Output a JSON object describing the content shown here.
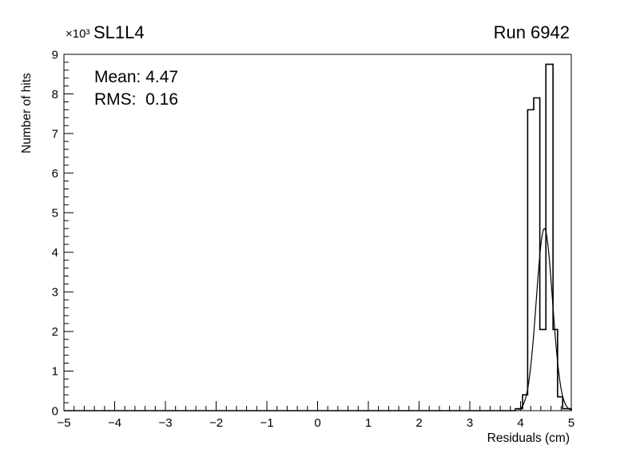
{
  "header": {
    "left_title": "SL1L4",
    "right_title": "Run 6942"
  },
  "stats": {
    "mean_text": "Mean: 4.47",
    "rms_text": "RMS:  0.16"
  },
  "axes": {
    "x_title": "Residuals (cm)",
    "y_title": "Number of hits",
    "y_multiplier": "×10³"
  },
  "chart_data": {
    "type": "bar",
    "subtype": "histogram_with_gaussian_fit",
    "title": "SL1L4",
    "annotation": "Run 6942",
    "xlabel": "Residuals (cm)",
    "ylabel": "Number of hits",
    "x_range": [
      -5,
      5
    ],
    "y_range": [
      0,
      9000
    ],
    "x_major_ticks": [
      -5,
      -4,
      -3,
      -2,
      -1,
      0,
      1,
      2,
      3,
      4,
      5
    ],
    "x_minor_step": 0.2,
    "y_major_step": 1000,
    "y_minor_step": 200,
    "y_tick_labels": [
      "0",
      "1",
      "2",
      "3",
      "4",
      "5",
      "6",
      "7",
      "8",
      "9"
    ],
    "y_scale_factor": 1000,
    "grid": false,
    "legend_position": "none",
    "histogram": {
      "bin_edges": [
        3.9,
        4.04,
        4.14,
        4.26,
        4.38,
        4.5,
        4.64,
        4.73,
        4.83,
        5.0
      ],
      "counts": [
        50,
        400,
        7600,
        7900,
        2050,
        8750,
        2050,
        350,
        50
      ],
      "zero_elsewhere": true
    },
    "fit": {
      "shape": "gaussian",
      "mean": 4.47,
      "sigma": 0.16,
      "amplitude": 4600,
      "draw_range": [
        3.95,
        5.0
      ]
    },
    "stats_box": {
      "mean": 4.47,
      "rms": 0.16
    }
  }
}
